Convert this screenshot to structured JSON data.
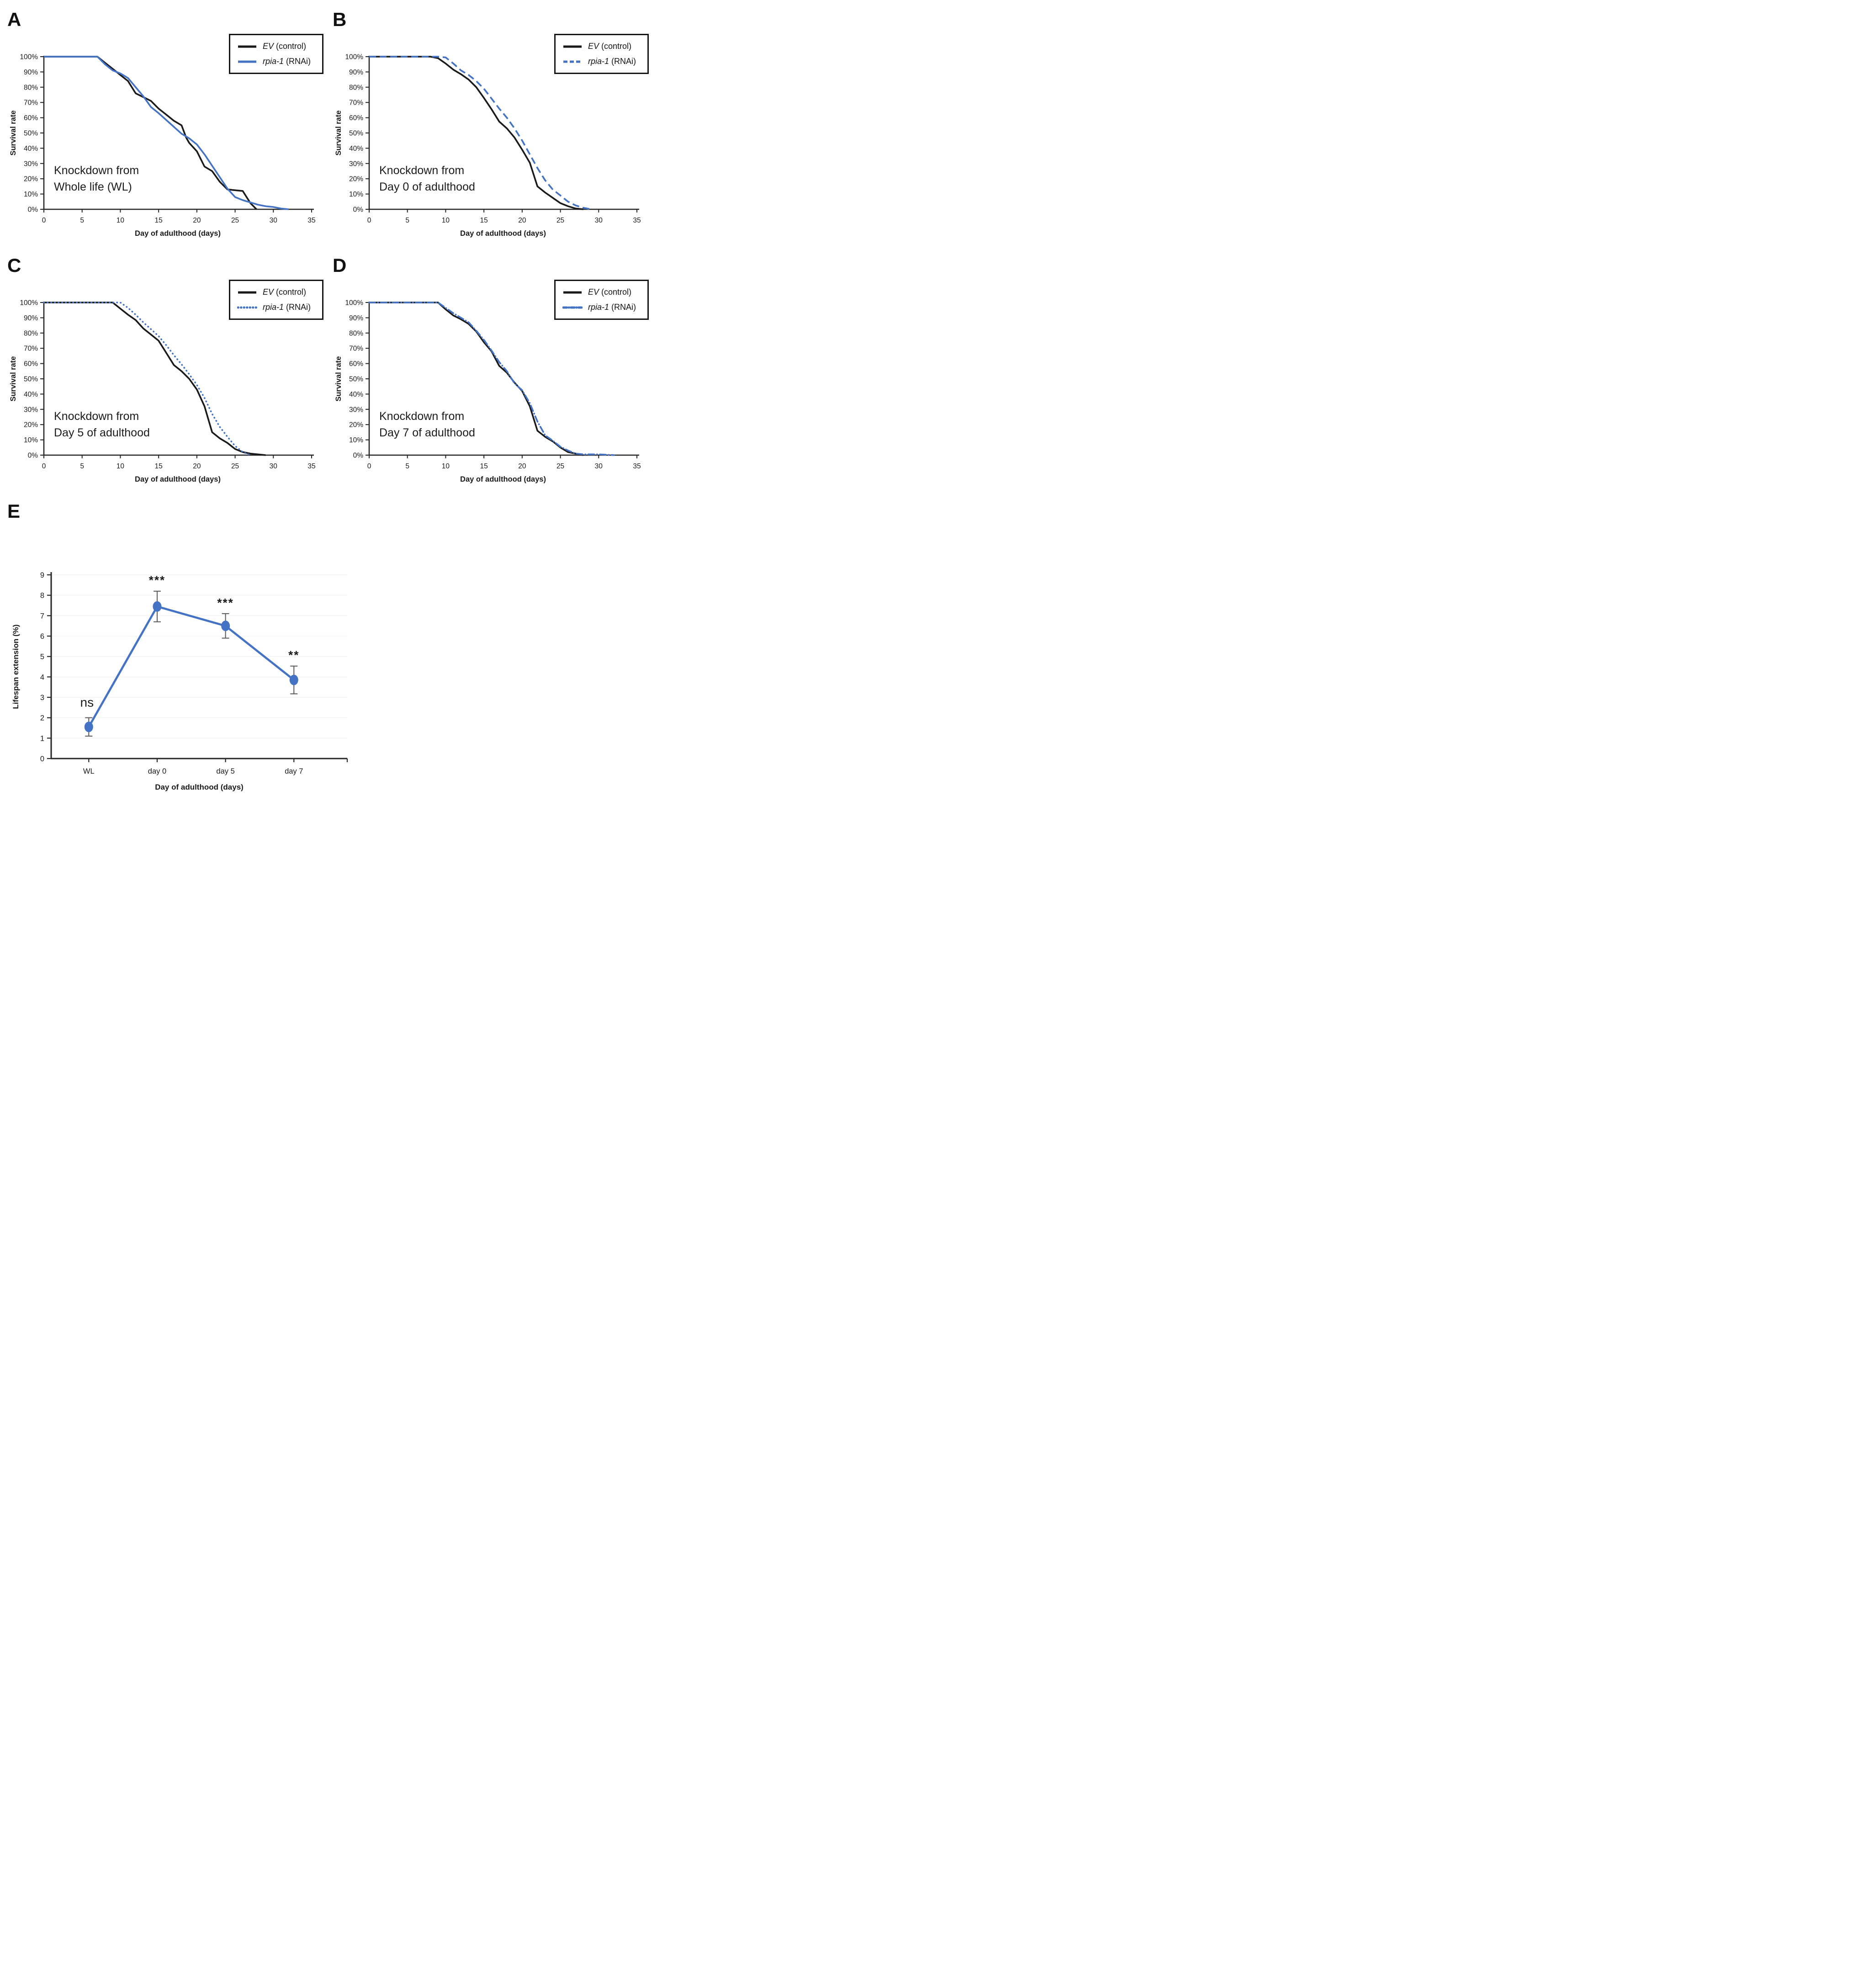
{
  "colors": {
    "ev": "#1a1a1a",
    "rnai": "#4472C4",
    "axis": "#262626",
    "error_bar": "#595959",
    "grid": "#f0f0f0"
  },
  "legend": {
    "ev_name": "EV",
    "ev_rest": " (control)",
    "rnai_name": "rpia-1",
    "rnai_rest": " (RNAi)"
  },
  "panels": [
    {
      "letter": "A",
      "annotation": [
        "Knockdown from",
        "Whole life (WL)"
      ],
      "rnai_dash": "solid"
    },
    {
      "letter": "B",
      "annotation": [
        "Knockdown from",
        "Day 0 of adulthood"
      ],
      "rnai_dash": "dashed"
    },
    {
      "letter": "C",
      "annotation": [
        "Knockdown from",
        "Day 5 of adulthood"
      ],
      "rnai_dash": "dotted"
    },
    {
      "letter": "D",
      "annotation": [
        "Knockdown from",
        "Day 7 of adulthood"
      ],
      "rnai_dash": "dashdot"
    },
    {
      "letter": "E"
    }
  ],
  "chart_data": [
    {
      "type": "line",
      "title": "Knockdown from Whole life (WL)",
      "xlabel": "Day of adulthood (days)",
      "ylabel": "Survival rate",
      "xlim": [
        0,
        35
      ],
      "ylim": [
        0,
        100
      ],
      "xticks": [
        0,
        5,
        10,
        15,
        20,
        25,
        30,
        35
      ],
      "yticks": [
        0,
        10,
        20,
        30,
        40,
        50,
        60,
        70,
        80,
        90,
        100
      ],
      "ytick_labels": [
        "0%",
        "10%",
        "20%",
        "30%",
        "40%",
        "50%",
        "60%",
        "70%",
        "80%",
        "90%",
        "100%"
      ],
      "grid": false,
      "legend_position": "top-right",
      "series": [
        {
          "name": "EV (control)",
          "color": "#1a1a1a",
          "dash": "solid",
          "x": [
            0,
            7,
            8,
            9,
            10,
            11,
            12,
            13,
            14,
            15,
            16,
            17,
            18,
            18.6,
            19,
            20,
            21,
            22,
            23,
            24,
            25,
            26,
            27,
            27.8
          ],
          "y": [
            100,
            100,
            96,
            92,
            88,
            84,
            76,
            73.5,
            71,
            66,
            62,
            58,
            55,
            47,
            43.5,
            38,
            28,
            25,
            18,
            13,
            12.5,
            12,
            4,
            0
          ]
        },
        {
          "name": "rpia-1 (RNAi)",
          "color": "#4472C4",
          "dash": "solid",
          "x": [
            0,
            7,
            8,
            9,
            10,
            11,
            12,
            13,
            14,
            15,
            16,
            17,
            18,
            19,
            20,
            21,
            22,
            23,
            24,
            25,
            26,
            27,
            28,
            29,
            30,
            31,
            32
          ],
          "y": [
            100,
            100,
            95,
            91,
            89,
            86,
            80,
            74,
            67,
            63,
            58.5,
            54,
            49.5,
            46.5,
            42.5,
            36,
            28.5,
            21,
            13.5,
            8,
            6,
            4.5,
            3,
            2,
            1.5,
            0.5,
            0
          ]
        }
      ]
    },
    {
      "type": "line",
      "title": "Knockdown from Day 0 of adulthood",
      "xlabel": "Day of adulthood (days)",
      "ylabel": "Survival rate",
      "xlim": [
        0,
        35
      ],
      "ylim": [
        0,
        100
      ],
      "xticks": [
        0,
        5,
        10,
        15,
        20,
        25,
        30,
        35
      ],
      "yticks": [
        0,
        10,
        20,
        30,
        40,
        50,
        60,
        70,
        80,
        90,
        100
      ],
      "ytick_labels": [
        "0%",
        "10%",
        "20%",
        "30%",
        "40%",
        "50%",
        "60%",
        "70%",
        "80%",
        "90%",
        "100%"
      ],
      "grid": false,
      "legend_position": "top-right",
      "series": [
        {
          "name": "EV (control)",
          "color": "#1a1a1a",
          "dash": "solid",
          "x": [
            0,
            8,
            9,
            10,
            11,
            12,
            13,
            14,
            15,
            16,
            17,
            18,
            19,
            20,
            21,
            22,
            23,
            24,
            25,
            26,
            27,
            28
          ],
          "y": [
            100,
            100,
            99,
            95.5,
            91.5,
            88.5,
            85,
            80,
            73,
            65.5,
            57.5,
            53,
            47,
            39,
            30.5,
            15,
            11,
            7.5,
            4,
            2,
            0.5,
            0
          ]
        },
        {
          "name": "rpia-1 (RNAi)",
          "color": "#4472C4",
          "dash": "dashed",
          "x": [
            0,
            9,
            10,
            11,
            12,
            13,
            14,
            15,
            16,
            17,
            18,
            19,
            20,
            21,
            22,
            23,
            24,
            25,
            26,
            27,
            28,
            29
          ],
          "y": [
            100,
            100,
            99.5,
            95.5,
            91,
            88,
            84,
            79,
            72.5,
            66,
            60,
            53,
            45,
            36,
            27,
            19,
            13,
            9,
            5,
            2.5,
            1,
            0
          ]
        }
      ]
    },
    {
      "type": "line",
      "title": "Knockdown from Day 5 of adulthood",
      "xlabel": "Day of adulthood (days)",
      "ylabel": "Survival rate",
      "xlim": [
        0,
        35
      ],
      "ylim": [
        0,
        100
      ],
      "xticks": [
        0,
        5,
        10,
        15,
        20,
        25,
        30,
        35
      ],
      "yticks": [
        0,
        10,
        20,
        30,
        40,
        50,
        60,
        70,
        80,
        90,
        100
      ],
      "ytick_labels": [
        "0%",
        "10%",
        "20%",
        "30%",
        "40%",
        "50%",
        "60%",
        "70%",
        "80%",
        "90%",
        "100%"
      ],
      "grid": false,
      "legend_position": "top-right",
      "series": [
        {
          "name": "EV (control)",
          "color": "#1a1a1a",
          "dash": "solid",
          "x": [
            0,
            9,
            10,
            11,
            12,
            13,
            14,
            15,
            16,
            17,
            18,
            19,
            20,
            21,
            22,
            23,
            24,
            25,
            26,
            27,
            29
          ],
          "y": [
            100,
            100,
            96,
            92,
            88.5,
            83,
            79,
            75,
            67,
            59,
            55,
            50,
            43,
            32,
            15,
            11,
            8,
            4,
            2,
            1,
            0
          ]
        },
        {
          "name": "rpia-1 (RNAi)",
          "color": "#4472C4",
          "dash": "dotted",
          "x": [
            0,
            10,
            11,
            12,
            13,
            14,
            15,
            16,
            17,
            18,
            19,
            20,
            21,
            22,
            23,
            24,
            25,
            26,
            27
          ],
          "y": [
            100,
            100,
            96.5,
            92,
            87,
            82.5,
            78,
            72,
            65.5,
            59.5,
            53,
            46,
            37.5,
            27,
            18.5,
            12,
            6,
            2,
            0
          ]
        }
      ]
    },
    {
      "type": "line",
      "title": "Knockdown from Day 7 of adulthood",
      "xlabel": "Day of adulthood (days)",
      "ylabel": "Survival rate",
      "xlim": [
        0,
        35
      ],
      "ylim": [
        0,
        100
      ],
      "xticks": [
        0,
        5,
        10,
        15,
        20,
        25,
        30,
        35
      ],
      "yticks": [
        0,
        10,
        20,
        30,
        40,
        50,
        60,
        70,
        80,
        90,
        100
      ],
      "ytick_labels": [
        "0%",
        "10%",
        "20%",
        "30%",
        "40%",
        "50%",
        "60%",
        "70%",
        "80%",
        "90%",
        "100%"
      ],
      "grid": false,
      "legend_position": "top-right",
      "series": [
        {
          "name": "EV (control)",
          "color": "#1a1a1a",
          "dash": "solid",
          "x": [
            0,
            9,
            10,
            11,
            12,
            13,
            14,
            15,
            16,
            17,
            18,
            19,
            20,
            21,
            22,
            23,
            24,
            25,
            26,
            27,
            28
          ],
          "y": [
            100,
            100,
            95.5,
            91.5,
            89,
            86,
            81,
            74,
            68,
            58.5,
            54,
            47.5,
            42,
            32,
            16,
            12,
            9,
            5,
            2,
            1,
            0
          ]
        },
        {
          "name": "rpia-1 (RNAi)",
          "color": "#4472C4",
          "dash": "dashdot",
          "x": [
            0,
            9,
            10,
            11,
            12,
            13,
            14,
            15,
            16,
            17,
            18,
            19,
            20,
            21,
            22,
            23,
            24,
            25,
            26,
            27,
            28,
            30,
            32
          ],
          "y": [
            100,
            100,
            96.5,
            93,
            90,
            87,
            81.5,
            75.5,
            68.5,
            61,
            55,
            47,
            42.5,
            34,
            22,
            13,
            9.5,
            5.5,
            3,
            1,
            0.5,
            0.5,
            0
          ]
        }
      ]
    },
    {
      "type": "line",
      "title": "",
      "categories": [
        "WL",
        "day 0",
        "day 5",
        "day 7"
      ],
      "values": [
        1.55,
        7.45,
        6.5,
        3.85
      ],
      "errors": [
        0.45,
        0.75,
        0.6,
        0.68
      ],
      "sig_labels": [
        "ns",
        "***",
        "***",
        "**"
      ],
      "xlabel": "Day of adulthood (days)",
      "ylabel": "Lifespan extension (%)",
      "ylim": [
        0,
        9
      ],
      "yticks": [
        0,
        1,
        2,
        3,
        4,
        5,
        6,
        7,
        8,
        9
      ],
      "grid": true,
      "marker": "circle",
      "color": "#4472C4"
    }
  ]
}
